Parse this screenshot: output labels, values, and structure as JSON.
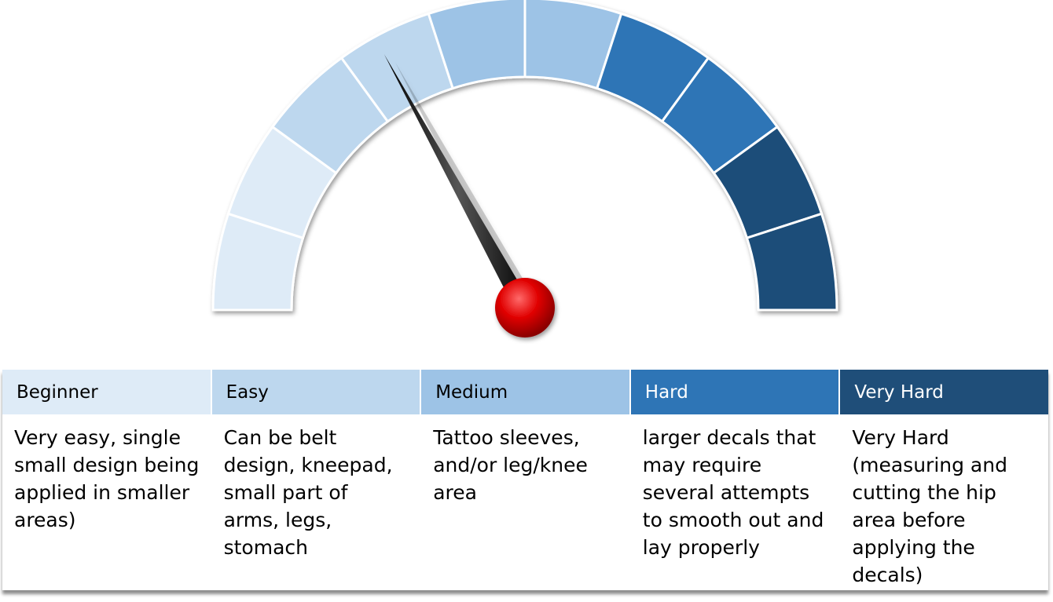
{
  "gauge": {
    "segment_colors": [
      "#deebf7",
      "#deebf7",
      "#bdd7ee",
      "#bdd7ee",
      "#9dc3e6",
      "#9dc3e6",
      "#2e75b6",
      "#2e75b6",
      "#1f4e79",
      "#1f4e79"
    ],
    "needle_value": 0.34,
    "knob_color": "#e00000"
  },
  "levels": [
    {
      "label": "Beginner",
      "color": "#deebf7",
      "text_color": "#000000",
      "description": "Very easy, single small design being applied in smaller areas)"
    },
    {
      "label": "Easy",
      "color": "#bdd7ee",
      "text_color": "#000000",
      "description": "Can be belt design, kneepad, small part of arms, legs, stomach"
    },
    {
      "label": "Medium",
      "color": "#9dc3e6",
      "text_color": "#000000",
      "description": "Tattoo sleeves, and/or leg/knee area"
    },
    {
      "label": "Hard",
      "color": "#2e75b6",
      "text_color": "#ffffff",
      "description": "larger decals that may require several attempts to smooth out and lay properly"
    },
    {
      "label": "Very Hard",
      "color": "#1f4e79",
      "text_color": "#ffffff",
      "description": "Very Hard (measuring and cutting the hip area before applying the decals)"
    }
  ]
}
